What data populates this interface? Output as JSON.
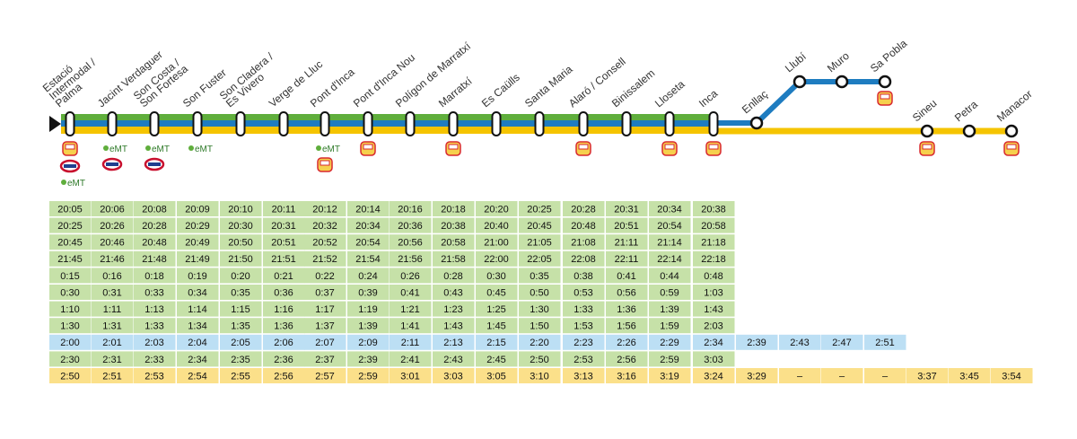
{
  "stations": [
    [
      "Estació",
      "Intermodal /",
      "Palma"
    ],
    [
      "Jacint Verdaguer"
    ],
    [
      "Son Costa /",
      "Son Fortesa"
    ],
    [
      "Son Fuster"
    ],
    [
      "Son Cladera /",
      "Es Vivero"
    ],
    [
      "Verge de Lluc"
    ],
    [
      "Pont d'Inca"
    ],
    [
      "Pont d'Inca Nou"
    ],
    [
      "Polígon de Marratxí"
    ],
    [
      "Marratxí"
    ],
    [
      "Es Caülls"
    ],
    [
      "Santa Maria"
    ],
    [
      "Alaró / Consell"
    ],
    [
      "Binissalem"
    ],
    [
      "Lloseta"
    ],
    [
      "Inca"
    ],
    [
      "Enllaç"
    ],
    [
      "Llubí"
    ],
    [
      "Muro"
    ],
    [
      "Sa Pobla"
    ],
    [
      "Sineu"
    ],
    [
      "Petra"
    ],
    [
      "Manacor"
    ]
  ],
  "emt_logo": "eMT",
  "timetable": [
    {
      "color": "#c6e1a8",
      "times": [
        "20:05",
        "20:06",
        "20:08",
        "20:09",
        "20:10",
        "20:11",
        "20:12",
        "20:14",
        "20:16",
        "20:18",
        "20:20",
        "20:25",
        "20:28",
        "20:31",
        "20:34",
        "20:38"
      ]
    },
    {
      "color": "#c6e1a8",
      "times": [
        "20:25",
        "20:26",
        "20:28",
        "20:29",
        "20:30",
        "20:31",
        "20:32",
        "20:34",
        "20:36",
        "20:38",
        "20:40",
        "20:45",
        "20:48",
        "20:51",
        "20:54",
        "20:58"
      ]
    },
    {
      "color": "#c6e1a8",
      "times": [
        "20:45",
        "20:46",
        "20:48",
        "20:49",
        "20:50",
        "20:51",
        "20:52",
        "20:54",
        "20:56",
        "20:58",
        "21:00",
        "21:05",
        "21:08",
        "21:11",
        "21:14",
        "21:18"
      ]
    },
    {
      "color": "#c6e1a8",
      "times": [
        "21:45",
        "21:46",
        "21:48",
        "21:49",
        "21:50",
        "21:51",
        "21:52",
        "21:54",
        "21:56",
        "21:58",
        "22:00",
        "22:05",
        "22:08",
        "22:11",
        "22:14",
        "22:18"
      ]
    },
    {
      "color": "#c6e1a8",
      "times": [
        "0:15",
        "0:16",
        "0:18",
        "0:19",
        "0:20",
        "0:21",
        "0:22",
        "0:24",
        "0:26",
        "0:28",
        "0:30",
        "0:35",
        "0:38",
        "0:41",
        "0:44",
        "0:48"
      ]
    },
    {
      "color": "#c6e1a8",
      "times": [
        "0:30",
        "0:31",
        "0:33",
        "0:34",
        "0:35",
        "0:36",
        "0:37",
        "0:39",
        "0:41",
        "0:43",
        "0:45",
        "0:50",
        "0:53",
        "0:56",
        "0:59",
        "1:03"
      ]
    },
    {
      "color": "#c6e1a8",
      "times": [
        "1:10",
        "1:11",
        "1:13",
        "1:14",
        "1:15",
        "1:16",
        "1:17",
        "1:19",
        "1:21",
        "1:23",
        "1:25",
        "1:30",
        "1:33",
        "1:36",
        "1:39",
        "1:43"
      ]
    },
    {
      "color": "#c6e1a8",
      "times": [
        "1:30",
        "1:31",
        "1:33",
        "1:34",
        "1:35",
        "1:36",
        "1:37",
        "1:39",
        "1:41",
        "1:43",
        "1:45",
        "1:50",
        "1:53",
        "1:56",
        "1:59",
        "2:03"
      ]
    },
    {
      "color": "#bcdff4",
      "times": [
        "2:00",
        "2:01",
        "2:03",
        "2:04",
        "2:05",
        "2:06",
        "2:07",
        "2:09",
        "2:11",
        "2:13",
        "2:15",
        "2:20",
        "2:23",
        "2:26",
        "2:29",
        "2:34",
        "2:39",
        "2:43",
        "2:47",
        "2:51"
      ]
    },
    {
      "color": "#c6e1a8",
      "times": [
        "2:30",
        "2:31",
        "2:33",
        "2:34",
        "2:35",
        "2:36",
        "2:37",
        "2:39",
        "2:41",
        "2:43",
        "2:45",
        "2:50",
        "2:53",
        "2:56",
        "2:59",
        "3:03"
      ]
    },
    {
      "color": "#fbe08a",
      "times": [
        "2:50",
        "2:51",
        "2:53",
        "2:54",
        "2:55",
        "2:56",
        "2:57",
        "2:59",
        "3:01",
        "3:03",
        "3:05",
        "3:10",
        "3:13",
        "3:16",
        "3:19",
        "3:24",
        "3:29",
        "–",
        "–",
        "–",
        "3:37",
        "3:45",
        "3:54"
      ]
    }
  ]
}
